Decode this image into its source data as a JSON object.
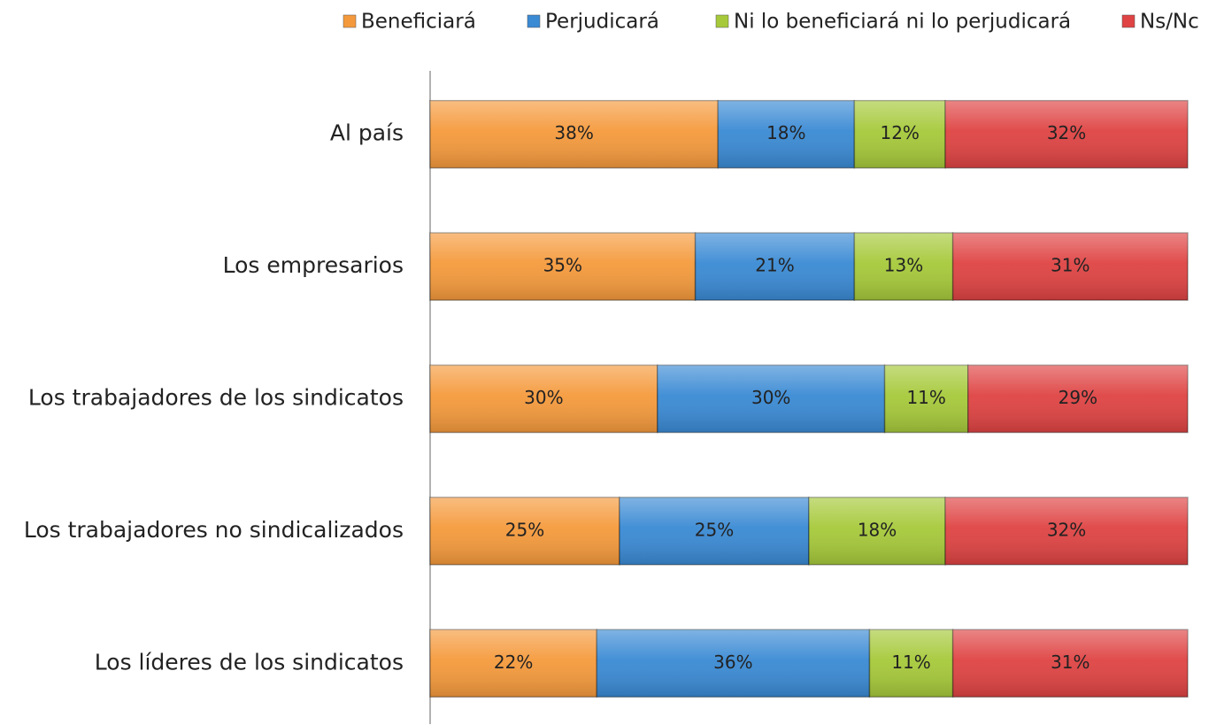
{
  "chart_data": {
    "type": "stacked-bar",
    "orientation": "horizontal",
    "categories": [
      "Al país",
      "Los empresarios",
      "Los trabajadores de los sindicatos",
      "Los trabajadores no sindicalizados",
      "Los líderes de los sindicatos"
    ],
    "series": [
      {
        "name": "Beneficiará",
        "color": "#f59a3c",
        "values": [
          38,
          35,
          30,
          25,
          22
        ],
        "value_labels": [
          "38%",
          "35%",
          "30%",
          "25%",
          "22%"
        ]
      },
      {
        "name": "Perjudicará",
        "color": "#3a8ad4",
        "values": [
          18,
          21,
          30,
          25,
          36
        ],
        "value_labels": [
          "18%",
          "21%",
          "30%",
          "25%",
          "36%"
        ]
      },
      {
        "name": "Ni lo beneficiará ni lo perjudicará",
        "color": "#a6c93a",
        "values": [
          12,
          13,
          11,
          18,
          11
        ],
        "value_labels": [
          "12%",
          "13%",
          "11%",
          "18%",
          "11%"
        ]
      },
      {
        "name": "Ns/Nc",
        "color": "#df4343",
        "values": [
          32,
          31,
          29,
          32,
          31
        ],
        "value_labels": [
          "32%",
          "31%",
          "29%",
          "32%",
          "31%"
        ]
      }
    ],
    "legend": "top"
  }
}
